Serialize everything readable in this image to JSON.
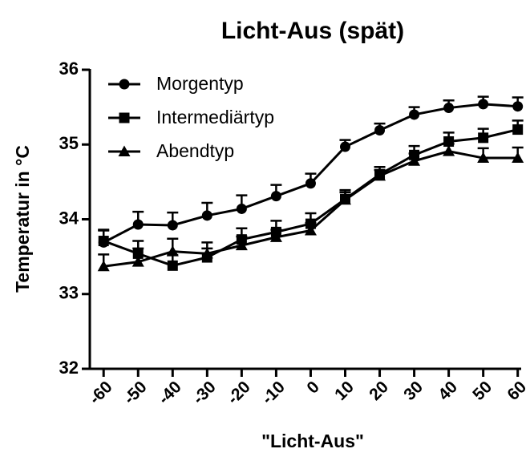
{
  "chart_data": {
    "type": "line",
    "title": "Licht-Aus (spät)",
    "x_label": "\"Licht-Aus\"",
    "y_label": "Temperatur in °C",
    "x": [
      -60,
      -50,
      -40,
      -30,
      -20,
      -10,
      0,
      10,
      20,
      30,
      40,
      50,
      60
    ],
    "xlim": [
      -64,
      61
    ],
    "xticks": [
      -60,
      -50,
      -40,
      -30,
      -20,
      -10,
      0,
      10,
      20,
      30,
      40,
      50,
      60
    ],
    "ylim": [
      32,
      36
    ],
    "yticks": [
      32,
      33,
      34,
      35,
      36
    ],
    "legend": "top-left",
    "series": [
      {
        "name": "Morgentyp",
        "color": "#000000",
        "marker": "circle",
        "values": [
          33.69,
          33.93,
          33.92,
          34.05,
          34.14,
          34.31,
          34.48,
          34.97,
          35.19,
          35.4,
          35.49,
          35.54,
          35.51
        ],
        "errors": [
          0.16,
          0.17,
          0.17,
          0.17,
          0.18,
          0.15,
          0.13,
          0.09,
          0.09,
          0.1,
          0.1,
          0.1,
          0.12
        ]
      },
      {
        "name": "Intermediärtyp",
        "color": "#000000",
        "marker": "square",
        "values": [
          33.71,
          33.54,
          33.38,
          33.49,
          33.73,
          33.83,
          33.94,
          34.27,
          34.6,
          34.86,
          35.04,
          35.09,
          35.2
        ],
        "errors": [
          0.15,
          0.17,
          0.14,
          0.12,
          0.15,
          0.15,
          0.14,
          0.12,
          0.1,
          0.12,
          0.12,
          0.12,
          0.12
        ]
      },
      {
        "name": "Abendtyp",
        "color": "#000000",
        "marker": "triangle",
        "values": [
          33.37,
          33.43,
          33.57,
          33.54,
          33.65,
          33.76,
          33.85,
          34.26,
          34.58,
          34.78,
          34.91,
          34.82,
          34.82
        ],
        "errors": [
          0.16,
          0.18,
          0.17,
          0.15,
          0.12,
          0.1,
          0.1,
          0.1,
          0.08,
          0.1,
          0.1,
          0.13,
          0.14
        ]
      }
    ]
  }
}
